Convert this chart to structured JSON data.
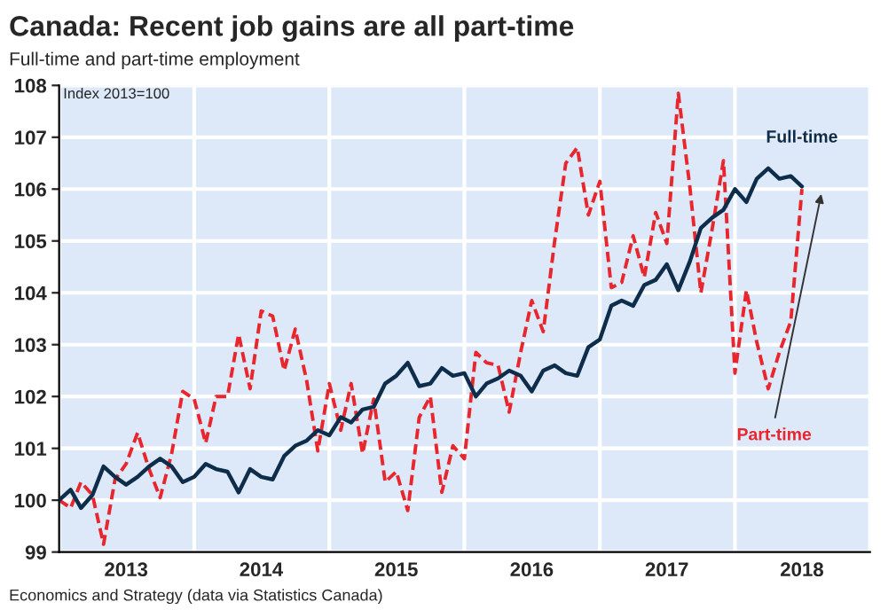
{
  "chart_data": {
    "type": "line",
    "title": "Canada: Recent job gains are all part-time",
    "subtitle": "Full-time and part-time employment",
    "annotations": [
      "Index 2013=100",
      "Economics and Strategy (data via Statistics Canada)"
    ],
    "x": [
      "2013-01",
      "2013-02",
      "2013-03",
      "2013-04",
      "2013-05",
      "2013-06",
      "2013-07",
      "2013-08",
      "2013-09",
      "2013-10",
      "2013-11",
      "2013-12",
      "2014-01",
      "2014-02",
      "2014-03",
      "2014-04",
      "2014-05",
      "2014-06",
      "2014-07",
      "2014-08",
      "2014-09",
      "2014-10",
      "2014-11",
      "2014-12",
      "2015-01",
      "2015-02",
      "2015-03",
      "2015-04",
      "2015-05",
      "2015-06",
      "2015-07",
      "2015-08",
      "2015-09",
      "2015-10",
      "2015-11",
      "2015-12",
      "2016-01",
      "2016-02",
      "2016-03",
      "2016-04",
      "2016-05",
      "2016-06",
      "2016-07",
      "2016-08",
      "2016-09",
      "2016-10",
      "2016-11",
      "2016-12",
      "2017-01",
      "2017-02",
      "2017-03",
      "2017-04",
      "2017-05",
      "2017-06",
      "2017-07",
      "2017-08",
      "2017-09",
      "2017-10",
      "2017-11",
      "2017-12",
      "2018-01",
      "2018-02",
      "2018-03",
      "2018-04",
      "2018-05",
      "2018-06",
      "2018-07"
    ],
    "series": [
      {
        "name": "Full-time",
        "color": "#0d2d4a",
        "line_style": "solid",
        "values": [
          100.0,
          100.2,
          99.85,
          100.1,
          100.65,
          100.45,
          100.3,
          100.45,
          100.65,
          100.8,
          100.65,
          100.35,
          100.45,
          100.7,
          100.6,
          100.55,
          100.15,
          100.6,
          100.45,
          100.4,
          100.85,
          101.05,
          101.15,
          101.35,
          101.25,
          101.6,
          101.5,
          101.75,
          101.8,
          102.25,
          102.4,
          102.65,
          102.2,
          102.25,
          102.55,
          102.4,
          102.45,
          102.0,
          102.25,
          102.35,
          102.5,
          102.4,
          102.1,
          102.5,
          102.6,
          102.45,
          102.4,
          102.95,
          103.1,
          103.75,
          103.85,
          103.75,
          104.15,
          104.25,
          104.55,
          104.05,
          104.6,
          105.25,
          105.45,
          105.6,
          106.0,
          105.75,
          106.2,
          106.4,
          106.2,
          106.25,
          106.05
        ]
      },
      {
        "name": "Part-time",
        "color": "#e8262e",
        "line_style": "dashed",
        "values": [
          100.0,
          99.85,
          100.35,
          100.1,
          99.15,
          100.4,
          100.7,
          101.3,
          100.6,
          100.05,
          100.9,
          102.1,
          101.95,
          101.1,
          102.0,
          102.0,
          103.2,
          102.15,
          103.65,
          103.55,
          102.5,
          103.3,
          102.3,
          100.95,
          102.25,
          101.35,
          102.25,
          100.9,
          101.95,
          100.35,
          100.55,
          99.8,
          101.6,
          102.0,
          100.15,
          101.05,
          100.8,
          102.85,
          102.65,
          102.6,
          101.7,
          102.85,
          103.85,
          103.25,
          105.0,
          106.5,
          106.8,
          105.5,
          106.15,
          104.1,
          104.2,
          105.1,
          104.3,
          105.55,
          104.95,
          107.85,
          106.05,
          104.0,
          105.25,
          106.55,
          102.45,
          104.05,
          103.05,
          102.15,
          102.85,
          103.45,
          106.0
        ]
      }
    ],
    "xlim": [
      "2013-01-01",
      "2019-01-01"
    ],
    "xticks": [
      {
        "value": "2013-01-01",
        "label": null
      },
      {
        "value": "2013-07-01",
        "label": "2013"
      },
      {
        "value": "2014-01-01",
        "label": null
      },
      {
        "value": "2014-07-01",
        "label": "2014"
      },
      {
        "value": "2015-01-01",
        "label": null
      },
      {
        "value": "2015-07-01",
        "label": "2015"
      },
      {
        "value": "2016-01-01",
        "label": null
      },
      {
        "value": "2016-07-01",
        "label": "2016"
      },
      {
        "value": "2017-01-01",
        "label": null
      },
      {
        "value": "2017-07-01",
        "label": "2017"
      },
      {
        "value": "2018-01-01",
        "label": null
      },
      {
        "value": "2018-07-01",
        "label": "2018"
      },
      {
        "value": "2019-01-01",
        "label": null
      }
    ],
    "ylim": [
      99,
      108
    ],
    "yticks": [
      99,
      100,
      101,
      102,
      103,
      104,
      105,
      106,
      107,
      108
    ],
    "grid": true,
    "legend": false
  }
}
